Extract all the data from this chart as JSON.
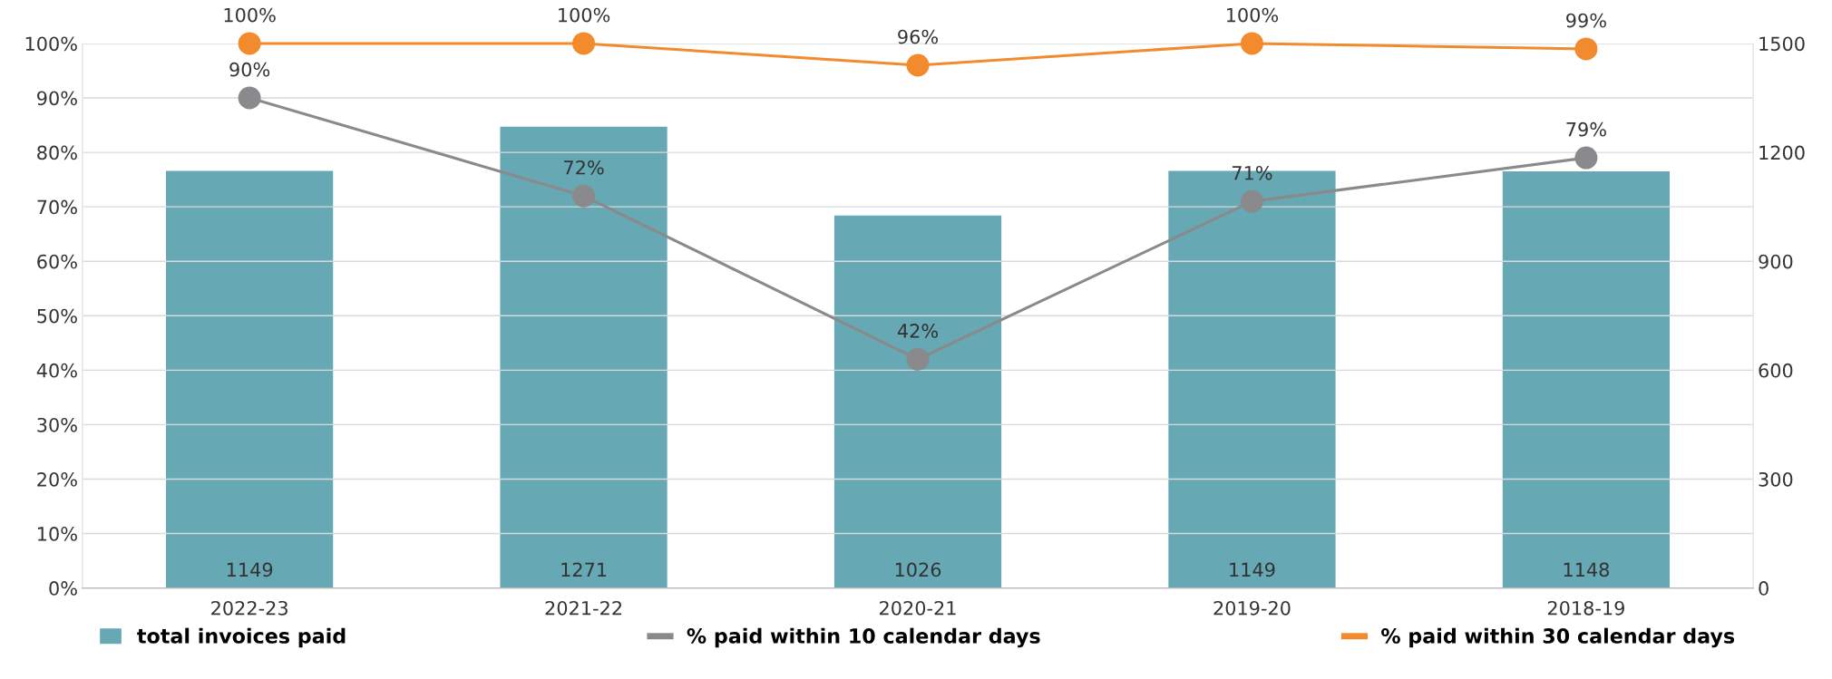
{
  "chart_data": {
    "type": "bar",
    "categories": [
      "2022-23",
      "2021-22",
      "2020-21",
      "2019-20",
      "2018-19"
    ],
    "series": [
      {
        "name": "total invoices paid",
        "axis": "y2",
        "color": "#66a8b4",
        "values": [
          1149,
          1271,
          1026,
          1149,
          1148
        ],
        "value_labels": [
          "1149",
          "1271",
          "1026",
          "1149",
          "1148"
        ]
      },
      {
        "name": "% paid within 10 calendar days",
        "type": "line",
        "color": "#8a8a8c",
        "values": [
          90,
          72,
          42,
          71,
          79
        ],
        "value_labels": [
          "90%",
          "72%",
          "42%",
          "71%",
          "79%"
        ]
      },
      {
        "name": "% paid within 30 calendar days",
        "type": "line",
        "color": "#f28a2e",
        "values": [
          100,
          100,
          96,
          100,
          99
        ],
        "value_labels": [
          "100%",
          "100%",
          "96%",
          "100%",
          "99%"
        ]
      }
    ],
    "ylim": [
      0,
      100
    ],
    "yticks": [
      {
        "value": 0,
        "label": "0%"
      },
      {
        "value": 10,
        "label": "10%"
      },
      {
        "value": 20,
        "label": "20%"
      },
      {
        "value": 30,
        "label": "30%"
      },
      {
        "value": 40,
        "label": "40%"
      },
      {
        "value": 50,
        "label": "50%"
      },
      {
        "value": 60,
        "label": "60%"
      },
      {
        "value": 70,
        "label": "70%"
      },
      {
        "value": 80,
        "label": "80%"
      },
      {
        "value": 90,
        "label": "90%"
      },
      {
        "value": 100,
        "label": "100%"
      }
    ],
    "y2lim": [
      0,
      1500
    ],
    "y2ticks": [
      0,
      300,
      600,
      900,
      1200,
      1500
    ],
    "grid": "y",
    "legend": "bottom",
    "marker": "circle",
    "line_style": "solid"
  }
}
